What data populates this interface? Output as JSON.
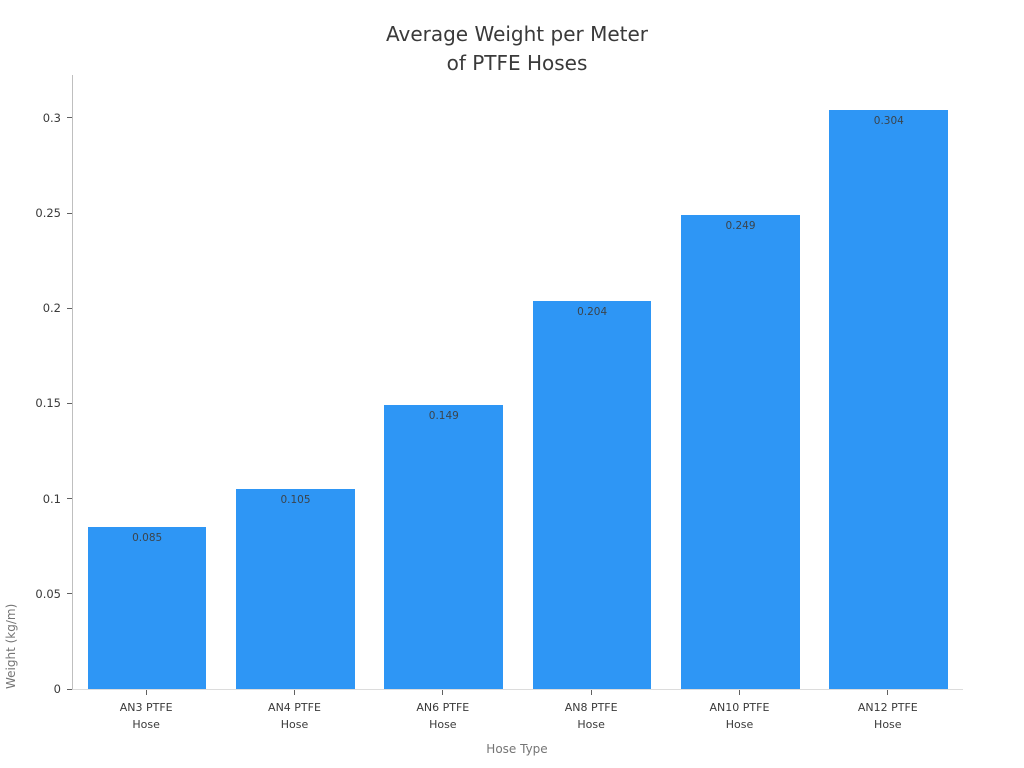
{
  "title": {
    "line1": "Average Weight per Meter",
    "line2": "of PTFE Hoses"
  },
  "chart_data": {
    "type": "bar",
    "title": "Average Weight per Meter of PTFE Hoses",
    "xlabel": "Hose Type",
    "ylabel": "Weight (kg/m)",
    "categories": [
      "AN3 PTFE Hose",
      "AN4 PTFE Hose",
      "AN6 PTFE Hose",
      "AN8 PTFE Hose",
      "AN10 PTFE Hose",
      "AN12 PTFE Hose"
    ],
    "category_lines": [
      [
        "AN3 PTFE",
        "Hose"
      ],
      [
        "AN4 PTFE",
        "Hose"
      ],
      [
        "AN6 PTFE",
        "Hose"
      ],
      [
        "AN8 PTFE",
        "Hose"
      ],
      [
        "AN10 PTFE",
        "Hose"
      ],
      [
        "AN12 PTFE",
        "Hose"
      ]
    ],
    "values": [
      0.085,
      0.105,
      0.149,
      0.204,
      0.249,
      0.304
    ],
    "value_labels": [
      "0.085",
      "0.105",
      "0.149",
      "0.204",
      "0.249",
      "0.304"
    ],
    "yticks": [
      0,
      0.05,
      0.1,
      0.15,
      0.2,
      0.25,
      0.3
    ],
    "ytick_labels": [
      "0",
      "0.05",
      "0.1",
      "0.15",
      "0.2",
      "0.25",
      "0.3"
    ],
    "ylim": [
      0,
      0.3225
    ],
    "grid": false,
    "legend": false,
    "bar_color": "#2e96f5",
    "bar_width_ratio": 0.8
  },
  "colors": {
    "background": "#ffffff",
    "bar": "#2e96f5",
    "title_text": "#3a3a3a",
    "tick_text": "#3a3a3a",
    "axis_title_text": "#757575",
    "value_label_text": "#3b444c",
    "left_spine": "#bfbfbf",
    "bottom_spine": "#dcdcdc",
    "tick_mark": "#606060"
  }
}
